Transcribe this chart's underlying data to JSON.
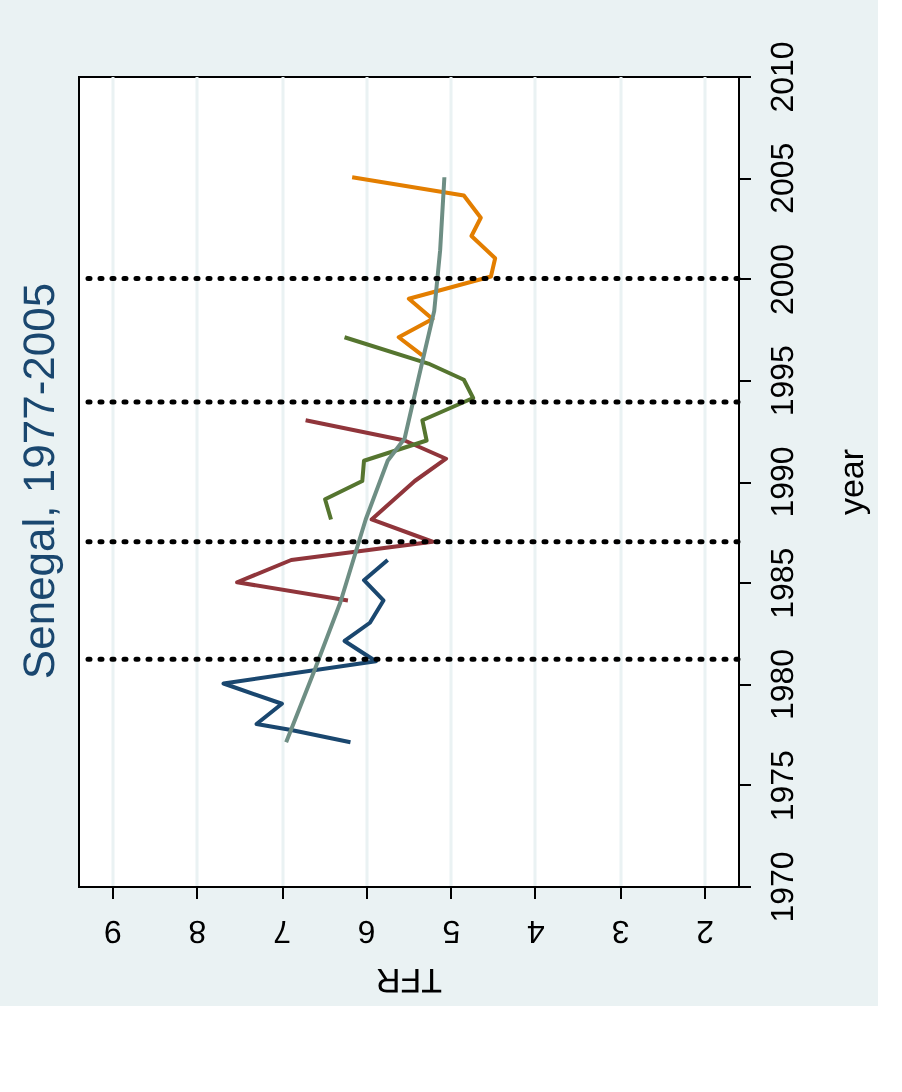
{
  "chart_data": {
    "type": "line",
    "title": "Senegal, 1977-2005",
    "xlabel": "TFR",
    "ylabel": "year",
    "xlim": [
      9.4,
      1.6
    ],
    "xticks": [
      9,
      8,
      7,
      6,
      5,
      4,
      3,
      2
    ],
    "ylim": [
      1970,
      2010
    ],
    "yticks": [
      1970,
      1975,
      1980,
      1985,
      1990,
      1995,
      2000,
      2005,
      2010
    ],
    "grid": "x",
    "line_style": "solid",
    "series": [
      {
        "color": "#1a476f",
        "values": [
          1977.1,
          1977.7,
          1978.0,
          1979.0,
          1980.0,
          1981.1,
          1982.1,
          1983.0,
          1984.1,
          1985.1,
          1986.1
        ],
        "x": [
          6.18,
          6.88,
          7.29,
          6.99,
          7.68,
          5.88,
          6.25,
          5.95,
          5.79,
          6.02,
          5.74
        ]
      },
      {
        "color": "#90353b",
        "values": [
          1984.1,
          1985.0,
          1986.1,
          1987.0,
          1988.1,
          1990.0,
          1991.1,
          1992.0,
          1993.0
        ],
        "x": [
          6.21,
          7.52,
          6.88,
          5.21,
          5.93,
          5.42,
          5.05,
          5.54,
          6.71
        ]
      },
      {
        "color": "#55752f",
        "values": [
          1988.1,
          1989.1,
          1990.0,
          1991.0,
          1992.0,
          1993.0,
          1994.1,
          1995.0,
          1995.8,
          1997.1
        ],
        "x": [
          6.41,
          6.48,
          6.04,
          6.02,
          5.28,
          5.33,
          4.73,
          4.84,
          5.26,
          6.25
        ]
      },
      {
        "color": "#e37e00",
        "values": [
          1996.2,
          1997.1,
          1998.0,
          1999.0,
          2000.1,
          2001.0,
          2002.1,
          2003.0,
          2004.1,
          2005.0
        ],
        "x": [
          5.33,
          5.61,
          5.21,
          5.49,
          4.52,
          4.47,
          4.75,
          4.64,
          4.84,
          6.16
        ]
      },
      {
        "color": "#6e8e84",
        "values": [
          1977.1,
          1980.7,
          1984.0,
          1988.1,
          1991.0,
          1992.1,
          1995.9,
          1998.4,
          2001.4,
          2005.0
        ],
        "x": [
          6.94,
          6.6,
          6.3,
          6.0,
          5.74,
          5.54,
          5.33,
          5.19,
          5.12,
          5.07
        ]
      }
    ],
    "ref_lines": [
      {
        "axis": "y",
        "value": 1981.2,
        "color": "#000000",
        "line_style": "dotted"
      },
      {
        "axis": "y",
        "value": 1987.0,
        "color": "#000000",
        "line_style": "dotted"
      },
      {
        "axis": "y",
        "value": 1993.9,
        "color": "#000000",
        "line_style": "dotted"
      },
      {
        "axis": "y",
        "value": 2000.0,
        "color": "#000000",
        "line_style": "dotted"
      }
    ]
  }
}
